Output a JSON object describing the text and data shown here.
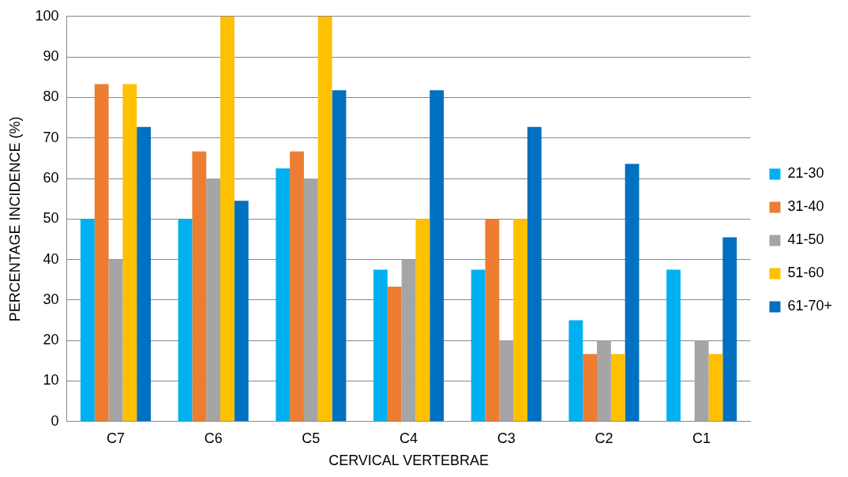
{
  "chart_data": {
    "type": "bar",
    "xlabel": "CERVICAL VERTEBRAE",
    "ylabel": "PERCENTAGE INCIDENCE (%)",
    "categories": [
      "C7",
      "C6",
      "C5",
      "C4",
      "C3",
      "C2",
      "C1"
    ],
    "series": [
      {
        "name": "21-30",
        "color": "#00b0f0",
        "values": [
          50,
          50,
          62.5,
          37.5,
          37.5,
          25,
          37.5
        ]
      },
      {
        "name": "31-40",
        "color": "#ed7d31",
        "values": [
          83.3,
          66.7,
          66.7,
          33.3,
          50,
          16.7,
          0
        ]
      },
      {
        "name": "41-50",
        "color": "#a5a5a5",
        "values": [
          40,
          60,
          60,
          40,
          20,
          20,
          20
        ]
      },
      {
        "name": "51-60",
        "color": "#ffc000",
        "values": [
          83.3,
          100,
          100,
          50,
          50,
          16.7,
          16.7
        ]
      },
      {
        "name": "61-70+",
        "color": "#0070c0",
        "values": [
          72.7,
          54.5,
          81.8,
          81.8,
          72.7,
          63.6,
          45.5
        ]
      }
    ],
    "ylim": [
      0,
      100
    ],
    "yticks": [
      0,
      10,
      20,
      30,
      40,
      50,
      60,
      70,
      80,
      90,
      100
    ],
    "grid": "y",
    "legend": "right"
  }
}
